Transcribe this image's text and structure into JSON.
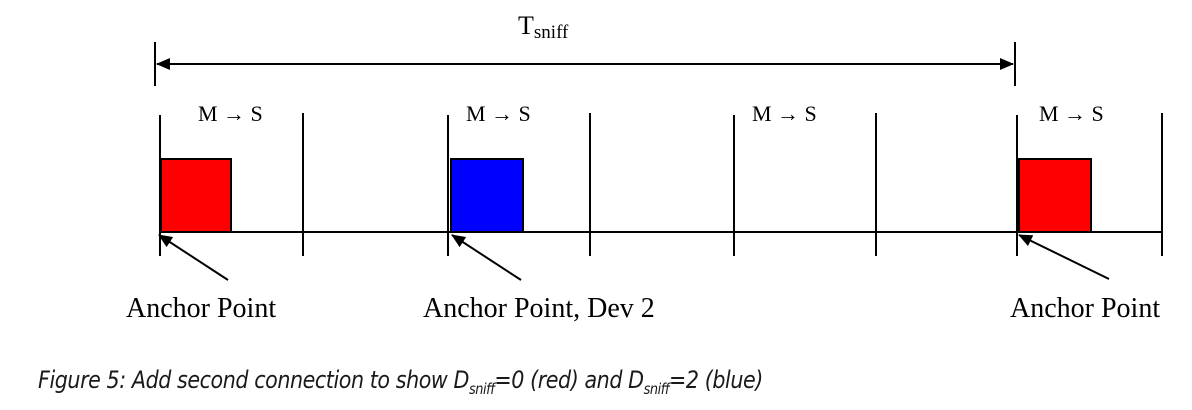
{
  "diagram": {
    "period_label": {
      "main": "T",
      "sub": "sniff"
    },
    "slot_label": "M → S",
    "anchor_labels": [
      "Anchor Point",
      "Anchor Point, Dev 2",
      "Anchor Point"
    ]
  },
  "caption": {
    "part1": "Figure 5: Add second connection to show D",
    "sub1": "sniff",
    "part2": "=0 (red) and D",
    "sub2": "sniff",
    "part3": "=2 (blue)"
  },
  "colors": {
    "red": "#ff0000",
    "blue": "#0000ff"
  }
}
